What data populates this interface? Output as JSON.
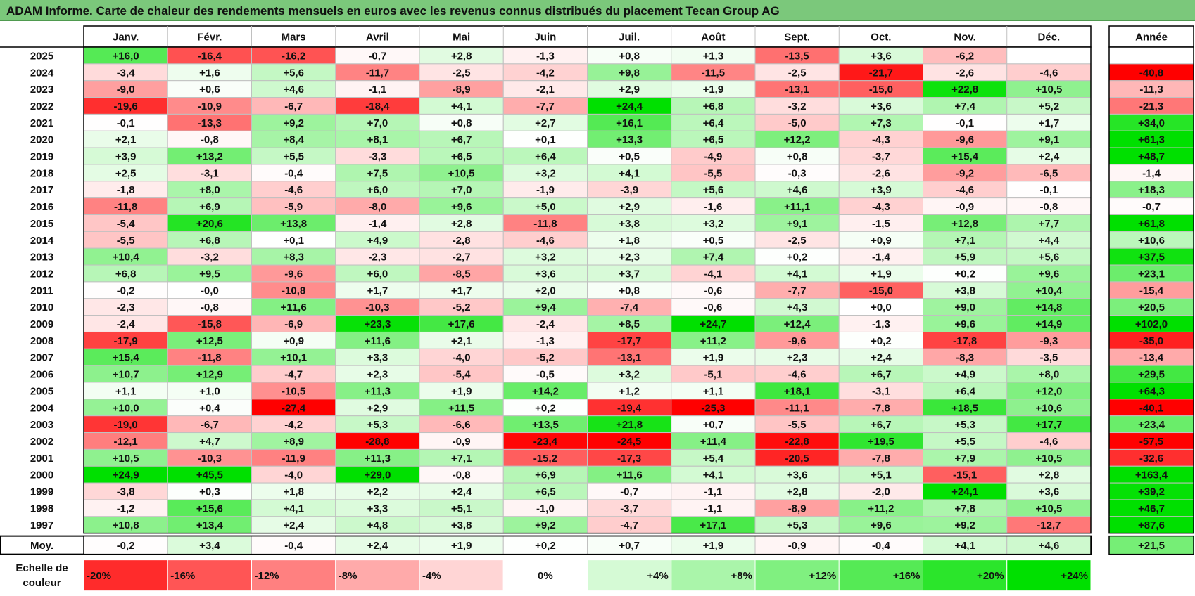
{
  "title": "ADAM Informe. Carte de chaleur des rendements mensuels en euros avec les revenus connus distribués du placement Tecan Group AG",
  "colors": {
    "positive": "#00e000",
    "negative": "#ff0000",
    "neutral": "#ffffff",
    "title_bg": "#7bc87b",
    "grid": "#c0c0c0"
  },
  "chart_data": {
    "type": "heatmap",
    "title": "ADAM Informe. Carte de chaleur des rendements mensuels en euros avec les revenus connus distribués du placement Tecan Group AG",
    "months": [
      "Janv.",
      "Févr.",
      "Mars",
      "Avril",
      "Mai",
      "Juin",
      "Juil.",
      "Août",
      "Sept.",
      "Oct.",
      "Nov.",
      "Déc."
    ],
    "year_header": "Année",
    "average_label": "Moy.",
    "rows": [
      {
        "year": "2025",
        "values": [
          "+16,0",
          "-16,4",
          "-16,2",
          "-0,7",
          "+2,8",
          "-1,3",
          "+0,8",
          "+1,3",
          "-13,5",
          "+3,6",
          "-6,2",
          ""
        ],
        "annual": ""
      },
      {
        "year": "2024",
        "values": [
          "-3,4",
          "+1,6",
          "+5,6",
          "-11,7",
          "-2,5",
          "-4,2",
          "+9,8",
          "-11,5",
          "-2,5",
          "-21,7",
          "-2,6",
          "-4,6"
        ],
        "annual": "-40,8"
      },
      {
        "year": "2023",
        "values": [
          "-9,0",
          "+0,6",
          "+4,6",
          "-1,1",
          "-8,9",
          "-2,1",
          "+2,9",
          "+1,9",
          "-13,1",
          "-15,0",
          "+22,8",
          "+10,5"
        ],
        "annual": "-11,3"
      },
      {
        "year": "2022",
        "values": [
          "-19,6",
          "-10,9",
          "-6,7",
          "-18,4",
          "+4,1",
          "-7,7",
          "+24,4",
          "+6,8",
          "-3,2",
          "+3,6",
          "+7,4",
          "+5,2"
        ],
        "annual": "-21,3"
      },
      {
        "year": "2021",
        "values": [
          "-0,1",
          "-13,3",
          "+9,2",
          "+7,0",
          "+0,8",
          "+2,7",
          "+16,1",
          "+6,4",
          "-5,0",
          "+7,3",
          "-0,1",
          "+1,7"
        ],
        "annual": "+34,0"
      },
      {
        "year": "2020",
        "values": [
          "+2,1",
          "-0,8",
          "+8,4",
          "+8,1",
          "+6,7",
          "+0,1",
          "+13,3",
          "+6,5",
          "+12,2",
          "-4,3",
          "-9,6",
          "+9,1"
        ],
        "annual": "+61,3"
      },
      {
        "year": "2019",
        "values": [
          "+3,9",
          "+13,2",
          "+5,5",
          "-3,3",
          "+6,5",
          "+6,4",
          "+0,5",
          "-4,9",
          "+0,8",
          "-3,7",
          "+15,4",
          "+2,4"
        ],
        "annual": "+48,7"
      },
      {
        "year": "2018",
        "values": [
          "+2,5",
          "-3,1",
          "-0,4",
          "+7,5",
          "+10,5",
          "+3,2",
          "+4,1",
          "-5,5",
          "-0,3",
          "-2,6",
          "-9,2",
          "-6,5"
        ],
        "annual": "-1,4"
      },
      {
        "year": "2017",
        "values": [
          "-1,8",
          "+8,0",
          "-4,6",
          "+6,0",
          "+7,0",
          "-1,9",
          "-3,9",
          "+5,6",
          "+4,6",
          "+3,9",
          "-4,6",
          "-0,1"
        ],
        "annual": "+18,3"
      },
      {
        "year": "2016",
        "values": [
          "-11,8",
          "+6,9",
          "-5,9",
          "-8,0",
          "+9,6",
          "+5,0",
          "+2,9",
          "-1,6",
          "+11,1",
          "-4,3",
          "-0,9",
          "-0,8"
        ],
        "annual": "-0,7"
      },
      {
        "year": "2015",
        "values": [
          "-5,4",
          "+20,6",
          "+13,8",
          "-1,4",
          "+2,8",
          "-11,8",
          "+3,8",
          "+3,2",
          "+9,1",
          "-1,5",
          "+12,8",
          "+7,7"
        ],
        "annual": "+61,8"
      },
      {
        "year": "2014",
        "values": [
          "-5,5",
          "+6,8",
          "+0,1",
          "+4,9",
          "-2,8",
          "-4,6",
          "+1,8",
          "+0,5",
          "-2,5",
          "+0,9",
          "+7,1",
          "+4,4"
        ],
        "annual": "+10,6"
      },
      {
        "year": "2013",
        "values": [
          "+10,4",
          "-3,2",
          "+8,3",
          "-2,3",
          "-2,7",
          "+3,2",
          "+2,3",
          "+7,4",
          "+0,2",
          "-1,4",
          "+5,9",
          "+5,6"
        ],
        "annual": "+37,5"
      },
      {
        "year": "2012",
        "values": [
          "+6,8",
          "+9,5",
          "-9,6",
          "+6,0",
          "-8,5",
          "+3,6",
          "+3,7",
          "-4,1",
          "+4,1",
          "+1,9",
          "+0,2",
          "+9,6"
        ],
        "annual": "+23,1"
      },
      {
        "year": "2011",
        "values": [
          "-0,2",
          "-0,0",
          "-10,8",
          "+1,7",
          "+1,7",
          "+2,0",
          "+0,8",
          "-0,6",
          "-7,7",
          "-15,0",
          "+3,8",
          "+10,4"
        ],
        "annual": "-15,4"
      },
      {
        "year": "2010",
        "values": [
          "-2,3",
          "-0,8",
          "+11,6",
          "-10,3",
          "-5,2",
          "+9,4",
          "-7,4",
          "-0,6",
          "+4,3",
          "+0,0",
          "+9,0",
          "+14,8"
        ],
        "annual": "+20,5"
      },
      {
        "year": "2009",
        "values": [
          "-2,4",
          "-15,8",
          "-6,9",
          "+23,3",
          "+17,6",
          "-2,4",
          "+8,5",
          "+24,7",
          "+12,4",
          "-1,3",
          "+9,6",
          "+14,9"
        ],
        "annual": "+102,0"
      },
      {
        "year": "2008",
        "values": [
          "-17,9",
          "+12,5",
          "+0,9",
          "+11,6",
          "+2,1",
          "-1,3",
          "-17,7",
          "+11,2",
          "-9,6",
          "+0,2",
          "-17,8",
          "-9,3"
        ],
        "annual": "-35,0"
      },
      {
        "year": "2007",
        "values": [
          "+15,4",
          "-11,8",
          "+10,1",
          "+3,3",
          "-4,0",
          "-5,2",
          "-13,1",
          "+1,9",
          "+2,3",
          "+2,4",
          "-8,3",
          "-3,5"
        ],
        "annual": "-13,4"
      },
      {
        "year": "2006",
        "values": [
          "+10,7",
          "+12,9",
          "-4,7",
          "+2,3",
          "-5,4",
          "-0,5",
          "+3,2",
          "-5,1",
          "-4,6",
          "+6,7",
          "+4,9",
          "+8,0"
        ],
        "annual": "+29,5"
      },
      {
        "year": "2005",
        "values": [
          "+1,1",
          "+1,0",
          "-10,5",
          "+11,3",
          "+1,9",
          "+14,2",
          "+1,2",
          "+1,1",
          "+18,1",
          "-3,1",
          "+6,4",
          "+12,0"
        ],
        "annual": "+64,3"
      },
      {
        "year": "2004",
        "values": [
          "+10,0",
          "+0,4",
          "-27,4",
          "+2,9",
          "+11,5",
          "+0,2",
          "-19,4",
          "-25,3",
          "-11,1",
          "-7,8",
          "+18,5",
          "+10,6"
        ],
        "annual": "-40,1"
      },
      {
        "year": "2003",
        "values": [
          "-19,0",
          "-6,7",
          "-4,2",
          "+5,3",
          "-6,6",
          "+13,5",
          "+21,8",
          "+0,7",
          "-5,5",
          "+6,7",
          "+5,3",
          "+17,7"
        ],
        "annual": "+23,4"
      },
      {
        "year": "2002",
        "values": [
          "-12,1",
          "+4,7",
          "+8,9",
          "-28,8",
          "-0,9",
          "-23,4",
          "-24,5",
          "+11,4",
          "-22,8",
          "+19,5",
          "+5,5",
          "-4,6"
        ],
        "annual": "-57,5"
      },
      {
        "year": "2001",
        "values": [
          "+10,5",
          "-10,3",
          "-11,9",
          "+11,3",
          "+7,1",
          "-15,2",
          "-17,3",
          "+5,4",
          "-20,5",
          "-7,8",
          "+7,9",
          "+10,5"
        ],
        "annual": "-32,6"
      },
      {
        "year": "2000",
        "values": [
          "+24,9",
          "+45,5",
          "-4,0",
          "+29,0",
          "-0,8",
          "+6,9",
          "+11,6",
          "+4,1",
          "+3,6",
          "+5,1",
          "-15,1",
          "+2,8"
        ],
        "annual": "+163,4"
      },
      {
        "year": "1999",
        "values": [
          "-3,8",
          "+0,3",
          "+1,8",
          "+2,2",
          "+2,4",
          "+6,5",
          "-0,7",
          "-1,1",
          "+2,8",
          "-2,0",
          "+24,1",
          "+3,6"
        ],
        "annual": "+39,2"
      },
      {
        "year": "1998",
        "values": [
          "-1,2",
          "+15,6",
          "+4,1",
          "+3,3",
          "+5,1",
          "-1,0",
          "-3,7",
          "-1,1",
          "-8,9",
          "+11,2",
          "+7,8",
          "+10,5"
        ],
        "annual": "+46,7"
      },
      {
        "year": "1997",
        "values": [
          "+10,8",
          "+13,4",
          "+2,4",
          "+4,8",
          "+3,8",
          "+9,2",
          "-4,7",
          "+17,1",
          "+5,3",
          "+9,6",
          "+9,2",
          "-12,7"
        ],
        "annual": "+87,6"
      }
    ],
    "averages": {
      "values": [
        "-0,2",
        "+3,4",
        "-0,4",
        "+2,4",
        "+1,9",
        "+0,2",
        "+0,7",
        "+1,9",
        "-0,9",
        "-0,4",
        "+4,1",
        "+4,6"
      ],
      "annual": "+21,5"
    },
    "scale": {
      "label_lines": [
        "Echelle de",
        "couleur"
      ],
      "steps": [
        "-20%",
        "-16%",
        "-12%",
        "-8%",
        "-4%",
        "0%",
        "+4%",
        "+8%",
        "+12%",
        "+16%",
        "+20%",
        "+24%"
      ],
      "step_values": [
        -20,
        -16,
        -12,
        -8,
        -4,
        0,
        4,
        8,
        12,
        16,
        20,
        24
      ]
    }
  }
}
